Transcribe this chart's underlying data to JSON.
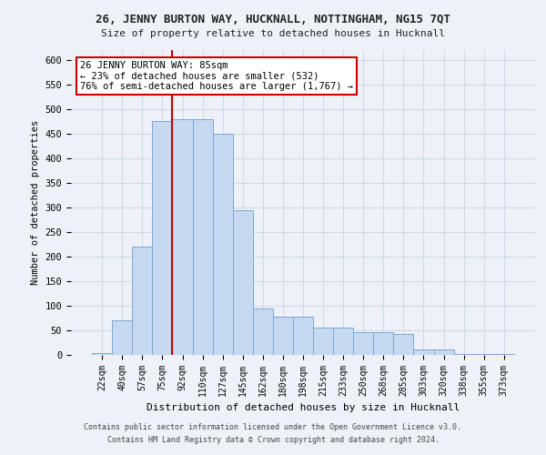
{
  "title": "26, JENNY BURTON WAY, HUCKNALL, NOTTINGHAM, NG15 7QT",
  "subtitle": "Size of property relative to detached houses in Hucknall",
  "xlabel_bottom": "Distribution of detached houses by size in Hucknall",
  "ylabel": "Number of detached properties",
  "footer1": "Contains HM Land Registry data © Crown copyright and database right 2024.",
  "footer2": "Contains public sector information licensed under the Open Government Licence v3.0.",
  "categories": [
    "22sqm",
    "40sqm",
    "57sqm",
    "75sqm",
    "92sqm",
    "110sqm",
    "127sqm",
    "145sqm",
    "162sqm",
    "180sqm",
    "198sqm",
    "215sqm",
    "233sqm",
    "250sqm",
    "268sqm",
    "285sqm",
    "303sqm",
    "320sqm",
    "338sqm",
    "355sqm",
    "373sqm"
  ],
  "values": [
    3,
    70,
    220,
    475,
    480,
    480,
    450,
    295,
    95,
    78,
    78,
    55,
    55,
    47,
    47,
    43,
    12,
    12,
    2,
    2,
    2
  ],
  "bar_color": "#c6d9f0",
  "bar_edge_color": "#7ba7d4",
  "grid_color": "#d0d8e8",
  "vline_color": "#cc0000",
  "annotation_text": "26 JENNY BURTON WAY: 85sqm\n← 23% of detached houses are smaller (532)\n76% of semi-detached houses are larger (1,767) →",
  "annotation_box_color": "#ffffff",
  "annotation_box_edge_color": "#cc0000",
  "background_color": "#eef2f8",
  "ylim": [
    0,
    620
  ],
  "yticks": [
    0,
    50,
    100,
    150,
    200,
    250,
    300,
    350,
    400,
    450,
    500,
    550,
    600
  ]
}
